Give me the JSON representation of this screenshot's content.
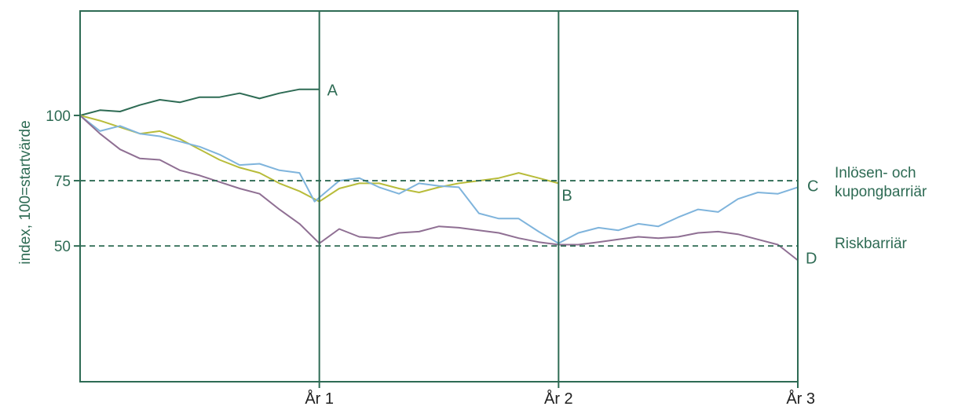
{
  "colors": {
    "frame": "#2e6b54",
    "text": "#2e6b54",
    "A": "#2e6b54",
    "B": "#b8bc3a",
    "C": "#7fb4dc",
    "D": "#8f6f93"
  },
  "chart_data": {
    "type": "line",
    "ylabel": "index, 100=startvärde",
    "xlabel": "",
    "xlim": [
      0,
      3
    ],
    "ylim": [
      -2,
      140
    ],
    "grid": false,
    "x_ticks": [
      {
        "value": 1,
        "label": "År 1"
      },
      {
        "value": 2,
        "label": "År 2"
      },
      {
        "value": 3,
        "label": "År 3"
      }
    ],
    "y_ticks": [
      {
        "value": 100,
        "label": "100"
      },
      {
        "value": 75,
        "label": "75"
      },
      {
        "value": 50,
        "label": "50"
      }
    ],
    "vertical_lines": [
      1,
      2
    ],
    "reference_lines": [
      {
        "value": 75,
        "label": "Inlösen- och kupongbarriär",
        "style": "dashed"
      },
      {
        "value": 50,
        "label": "Riskbarriär",
        "style": "dashed"
      }
    ],
    "series": [
      {
        "name": "A",
        "color_key": "A",
        "x": [
          0,
          0.083,
          0.167,
          0.25,
          0.333,
          0.417,
          0.5,
          0.583,
          0.667,
          0.75,
          0.833,
          0.917,
          1.0
        ],
        "values": [
          100,
          102,
          101.5,
          104,
          106,
          105,
          107,
          107,
          108.5,
          106.5,
          108.5,
          110,
          110
        ]
      },
      {
        "name": "B",
        "color_key": "B",
        "x": [
          0,
          0.083,
          0.167,
          0.25,
          0.333,
          0.417,
          0.5,
          0.583,
          0.667,
          0.75,
          0.833,
          0.917,
          1.0,
          1.083,
          1.167,
          1.25,
          1.333,
          1.417,
          1.5,
          1.583,
          1.667,
          1.75,
          1.833,
          1.917,
          2.0
        ],
        "values": [
          100,
          98,
          95.5,
          93,
          94,
          91,
          87,
          83,
          80,
          78,
          74,
          71,
          67,
          72,
          74,
          74,
          72,
          70.5,
          72.5,
          74,
          75,
          76,
          78,
          76,
          74
        ]
      },
      {
        "name": "C",
        "color_key": "C",
        "x": [
          0,
          0.083,
          0.167,
          0.25,
          0.333,
          0.417,
          0.5,
          0.583,
          0.667,
          0.75,
          0.833,
          0.917,
          0.98,
          1.083,
          1.167,
          1.25,
          1.333,
          1.417,
          1.5,
          1.583,
          1.667,
          1.75,
          1.833,
          1.917,
          2.0,
          2.083,
          2.167,
          2.25,
          2.333,
          2.417,
          2.5,
          2.583,
          2.667,
          2.75,
          2.833,
          2.917,
          3.0
        ],
        "values": [
          100,
          94,
          96,
          93,
          92,
          90,
          88,
          85,
          81,
          81.5,
          79,
          78,
          67,
          75,
          76,
          72.5,
          70,
          74,
          73,
          72.5,
          62.5,
          60.5,
          60.5,
          55.5,
          51,
          55,
          57,
          56,
          58.5,
          57.5,
          61,
          64,
          63,
          68,
          70.5,
          70,
          72.5
        ]
      },
      {
        "name": "D",
        "color_key": "D",
        "x": [
          0,
          0.083,
          0.167,
          0.25,
          0.333,
          0.417,
          0.5,
          0.583,
          0.667,
          0.75,
          0.833,
          0.917,
          1.0,
          1.083,
          1.167,
          1.25,
          1.333,
          1.417,
          1.5,
          1.583,
          1.667,
          1.75,
          1.833,
          1.917,
          2.0,
          2.083,
          2.167,
          2.25,
          2.333,
          2.417,
          2.5,
          2.583,
          2.667,
          2.75,
          2.833,
          2.917,
          3.0
        ],
        "values": [
          100,
          93,
          87,
          83.5,
          83,
          79,
          77,
          74.5,
          72,
          70,
          64,
          58.5,
          51,
          56.5,
          53.5,
          53,
          55,
          55.5,
          57.5,
          57,
          56,
          55,
          53,
          51.5,
          50.5,
          50.5,
          51.5,
          52.5,
          53.5,
          53,
          53.5,
          55,
          55.5,
          54.5,
          52.5,
          50.5,
          44.5
        ]
      }
    ],
    "annotations": [
      {
        "text": "A",
        "series": "A"
      },
      {
        "text": "B",
        "series": "B"
      },
      {
        "text": "C",
        "series": "C"
      },
      {
        "text": "D",
        "series": "D"
      }
    ]
  }
}
